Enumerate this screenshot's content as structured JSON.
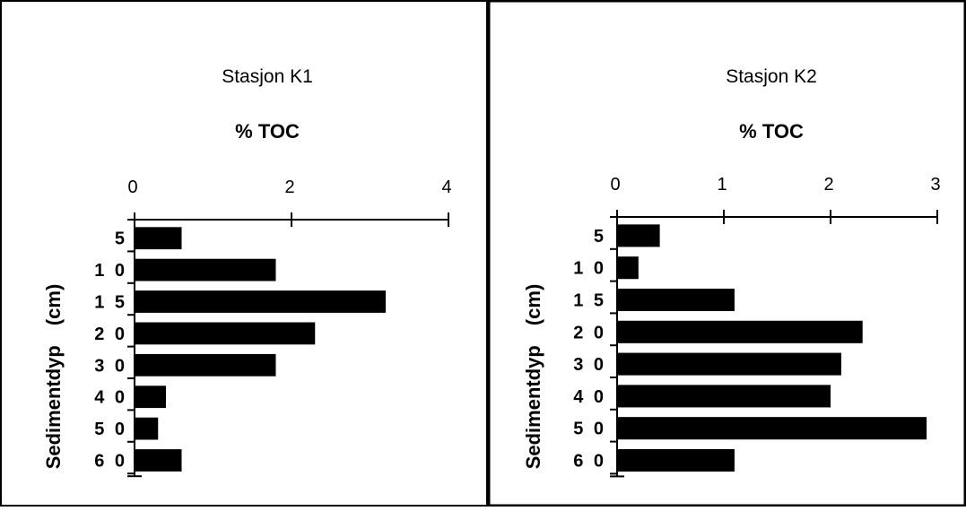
{
  "chart_data": [
    {
      "type": "bar",
      "orientation": "horizontal",
      "title": "Stasjon K1",
      "xlabel": "% TOC",
      "ylabel": "Sedimentdyp",
      "ylabel_unit": "(cm)",
      "xlim": [
        0,
        4
      ],
      "xticks": [
        "0",
        "2",
        "4"
      ],
      "categories": [
        "5",
        "1 0",
        "1 5",
        "2 0",
        "3 0",
        "4 0",
        "5 0",
        "6 0"
      ],
      "values": [
        0.6,
        1.8,
        3.2,
        2.3,
        1.8,
        0.4,
        0.3,
        0.6
      ]
    },
    {
      "type": "bar",
      "orientation": "horizontal",
      "title": "Stasjon K2",
      "xlabel": "% TOC",
      "ylabel": "Sedimentdyp",
      "ylabel_unit": "(cm)",
      "xlim": [
        0,
        3
      ],
      "xticks": [
        "0",
        "1",
        "2",
        "3"
      ],
      "categories": [
        "5",
        "1 0",
        "1 5",
        "2 0",
        "3 0",
        "4 0",
        "5 0",
        "6 0"
      ],
      "values": [
        0.4,
        0.2,
        1.1,
        2.3,
        2.1,
        2.0,
        2.9,
        1.1
      ]
    }
  ],
  "colors": {
    "bar": "#000000",
    "axis": "#000000",
    "frame": "#000000"
  }
}
